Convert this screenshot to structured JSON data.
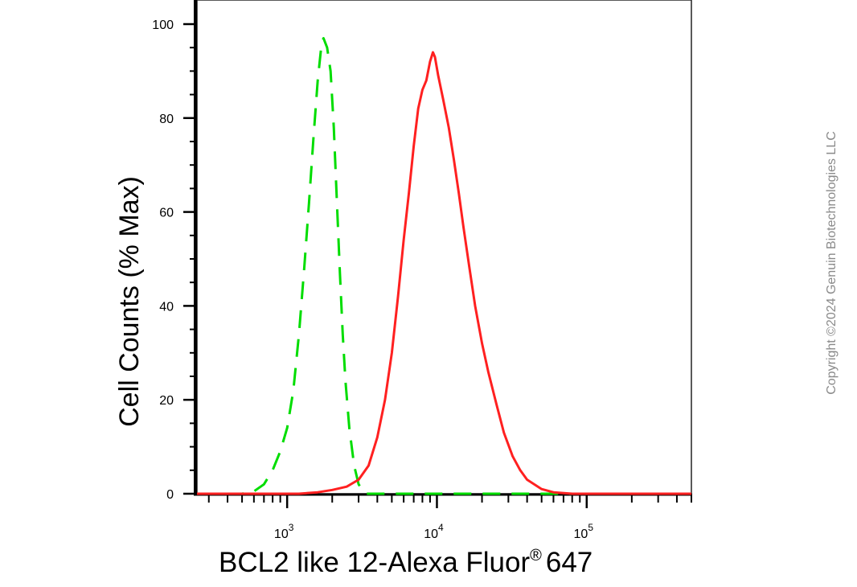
{
  "chart_data": {
    "type": "line",
    "title": "",
    "xlabel": "BCL2 like 12-Alexa Fluor",
    "xlabel_superscript": "®",
    "xlabel_suffix": "647",
    "ylabel": "Cell Counts (% Max)",
    "x_scale": "log",
    "xlim": [
      250,
      500000
    ],
    "ylim": [
      0,
      105
    ],
    "y_ticks": [
      0,
      20,
      40,
      60,
      80,
      100
    ],
    "x_ticks": [
      {
        "base": "10",
        "exp": "3",
        "value": 1000
      },
      {
        "base": "10",
        "exp": "4",
        "value": 10000
      },
      {
        "base": "10",
        "exp": "5",
        "value": 100000
      }
    ],
    "grid": false,
    "legend": "none",
    "series": [
      {
        "color": "#00dd00",
        "style": "dashed",
        "points": [
          [
            250,
            0
          ],
          [
            500,
            0
          ],
          [
            600,
            0.5
          ],
          [
            700,
            2
          ],
          [
            800,
            5
          ],
          [
            900,
            9
          ],
          [
            1000,
            14
          ],
          [
            1100,
            22
          ],
          [
            1200,
            34
          ],
          [
            1300,
            48
          ],
          [
            1400,
            62
          ],
          [
            1500,
            76
          ],
          [
            1600,
            88
          ],
          [
            1700,
            96
          ],
          [
            1750,
            97
          ],
          [
            1850,
            95
          ],
          [
            1950,
            90
          ],
          [
            2050,
            78
          ],
          [
            2150,
            62
          ],
          [
            2250,
            47
          ],
          [
            2350,
            34
          ],
          [
            2450,
            24
          ],
          [
            2600,
            14
          ],
          [
            2800,
            6
          ],
          [
            3000,
            2
          ],
          [
            3300,
            0
          ],
          [
            5000,
            0
          ],
          [
            500000,
            0
          ]
        ]
      },
      {
        "color": "#ff2020",
        "style": "solid",
        "points": [
          [
            250,
            0
          ],
          [
            1200,
            0
          ],
          [
            1600,
            0.3
          ],
          [
            2000,
            0.8
          ],
          [
            2500,
            1.5
          ],
          [
            3000,
            3
          ],
          [
            3500,
            6
          ],
          [
            4000,
            12
          ],
          [
            4500,
            20
          ],
          [
            5000,
            30
          ],
          [
            5500,
            42
          ],
          [
            6000,
            54
          ],
          [
            6500,
            64
          ],
          [
            7000,
            74
          ],
          [
            7500,
            82
          ],
          [
            8000,
            86
          ],
          [
            8500,
            88
          ],
          [
            9000,
            92
          ],
          [
            9400,
            94
          ],
          [
            9700,
            93
          ],
          [
            10200,
            89
          ],
          [
            11000,
            84
          ],
          [
            12000,
            78
          ],
          [
            13000,
            71
          ],
          [
            14000,
            64
          ],
          [
            15000,
            57
          ],
          [
            16500,
            48
          ],
          [
            18000,
            40
          ],
          [
            20000,
            32
          ],
          [
            22000,
            26
          ],
          [
            25000,
            19
          ],
          [
            28000,
            13
          ],
          [
            32000,
            8
          ],
          [
            36000,
            5
          ],
          [
            40000,
            3
          ],
          [
            50000,
            1
          ],
          [
            60000,
            0.3
          ],
          [
            80000,
            0
          ],
          [
            500000,
            0
          ]
        ]
      }
    ]
  },
  "copyright": "Copyright ©2024 Genuin Biotechnologies LLC"
}
